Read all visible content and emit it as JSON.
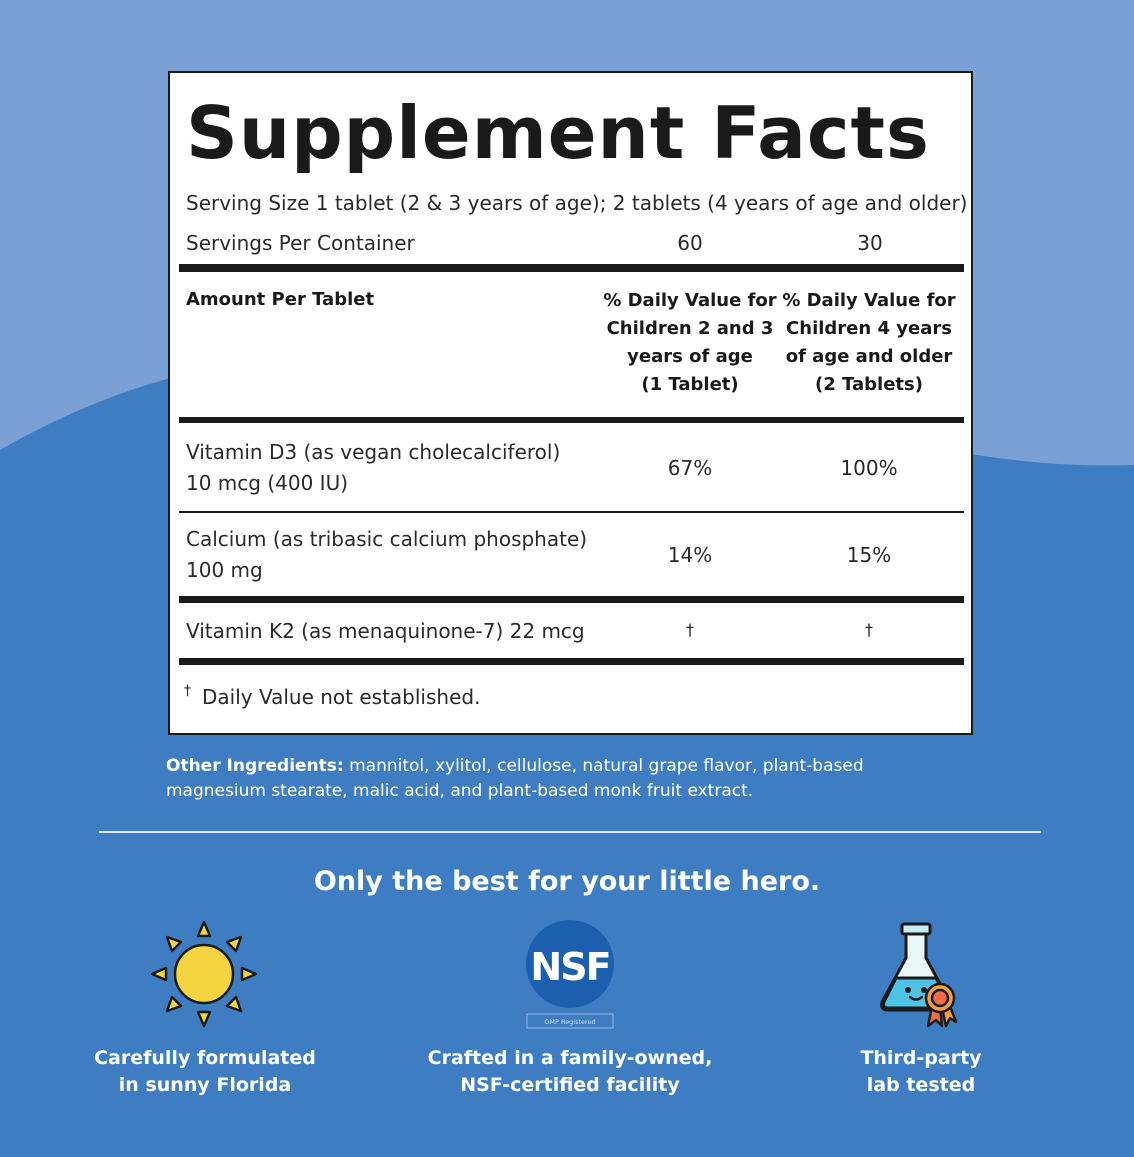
{
  "panel": {
    "title": "Supplement Facts",
    "serving_size": "Serving Size 1 tablet (2 & 3 years of age); 2 tablets (4 years of age and older)",
    "servings_label": "Servings Per Container",
    "servings_col1": "60",
    "servings_col2": "30",
    "amount_header": "Amount Per Tablet",
    "col1_header": [
      "% Daily Value for",
      "Children 2 and 3",
      "years of age",
      "(1 Tablet)"
    ],
    "col2_header": [
      "% Daily Value for",
      "Children 4 years",
      "of age and older",
      "(2 Tablets)"
    ],
    "rows": [
      {
        "name_line1": "Vitamin D3 (as vegan cholecalciferol)",
        "name_line2": "10 mcg (400 IU)",
        "dv1": "67%",
        "dv2": "100%"
      },
      {
        "name_line1": "Calcium (as tribasic calcium phosphate)",
        "name_line2": "100 mg",
        "dv1": "14%",
        "dv2": "15%"
      },
      {
        "name_line1": "Vitamin K2 (as menaquinone-7) 22 mcg",
        "name_line2": "",
        "dv1": "†",
        "dv2": "†"
      }
    ],
    "footnote_mark": "†",
    "footnote_text": "Daily Value not established."
  },
  "other_ingredients": {
    "label": "Other Ingredients:",
    "text": " mannitol, xylitol, cellulose, natural grape flavor, plant-based magnesium stearate, malic acid, and plant-based monk fruit extract."
  },
  "tagline": "Only the best for your little hero.",
  "badges": [
    {
      "icon": "sun-icon",
      "line1": "Carefully formulated",
      "line2": "in sunny Florida"
    },
    {
      "icon": "nsf-logo",
      "logo_text": "NSF",
      "sub_text": "GMP Registered",
      "line1": "Crafted in a family-owned,",
      "line2": "NSF-certified facility"
    },
    {
      "icon": "flask-icon",
      "line1": "Third-party",
      "line2": "lab tested"
    }
  ],
  "colors": {
    "background": "#3f7dc3",
    "wave": "#7aa0d6",
    "panel": "#ffffff",
    "ink": "#1a1a1a",
    "sun": "#f5d442",
    "nsf": "#1b5fae"
  }
}
